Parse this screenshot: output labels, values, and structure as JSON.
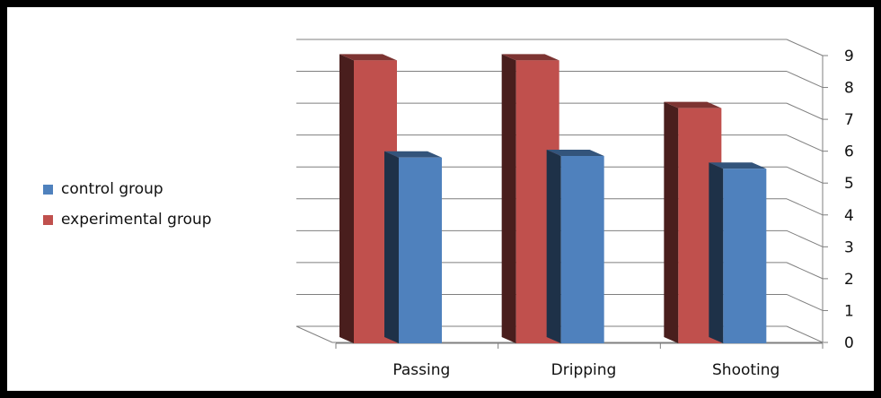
{
  "chart_data": {
    "type": "bar",
    "title": "",
    "xlabel": "",
    "ylabel": "",
    "categories": [
      "Passing",
      "Dripping",
      "Shooting"
    ],
    "series": [
      {
        "name": "control group",
        "values": [
          5.8,
          5.85,
          5.45
        ],
        "color": "#4f81bd"
      },
      {
        "name": "experimental group",
        "values": [
          8.85,
          8.85,
          7.35
        ],
        "color": "#c0504d"
      }
    ],
    "ylim": [
      0,
      9
    ],
    "yticks": [
      0,
      1,
      2,
      3,
      4,
      5,
      6,
      7,
      8,
      9
    ],
    "grid": true,
    "legend_position": "left",
    "style": "3d clustered column"
  }
}
